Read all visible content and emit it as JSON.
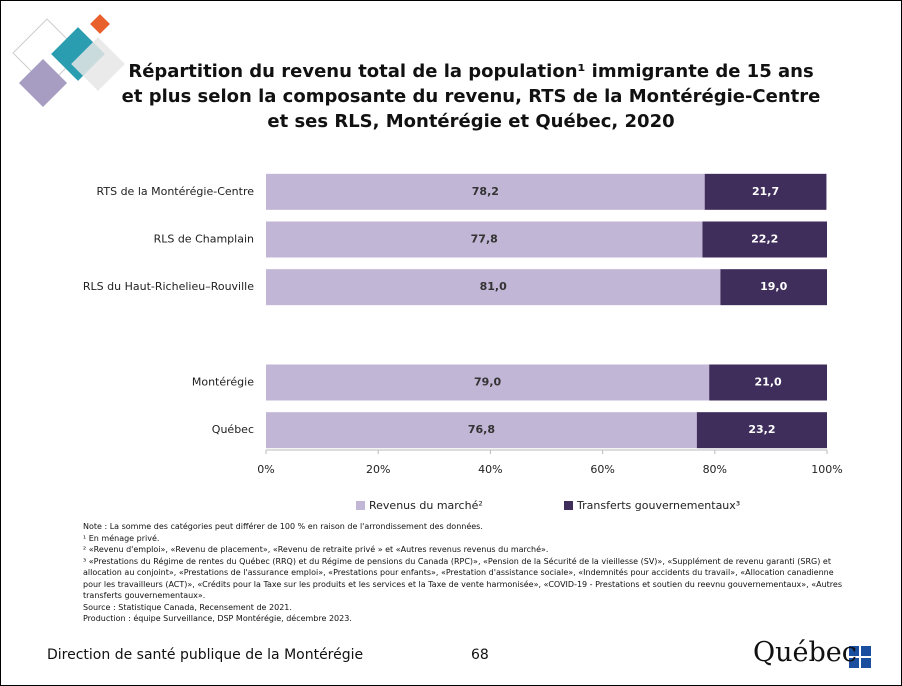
{
  "chart_data": {
    "type": "stacked-barh",
    "title": "Répartition du revenu total de la population¹ immigrante de 15 ans et plus selon la composante du revenu, RTS de la Montérégie-Centre et ses RLS, Montérégie et Québec, 2020",
    "categories": [
      "RTS de la Montérégie-Centre",
      "RLS de Champlain",
      "RLS du Haut-Richelieu–Rouville",
      null,
      "Montérégie",
      "Québec"
    ],
    "series": [
      {
        "name": "Revenus du marché²",
        "color": "#c2b6d6",
        "values": [
          78.2,
          77.8,
          81.0,
          null,
          79.0,
          76.8
        ],
        "value_labels": [
          "78,2",
          "77,8",
          "81,0",
          null,
          "79,0",
          "76,8"
        ]
      },
      {
        "name": "Transferts gouvernementaux³",
        "color": "#3f2e5c",
        "values": [
          21.7,
          22.2,
          19.0,
          null,
          21.0,
          23.2
        ],
        "value_labels": [
          "21,7",
          "22,2",
          "19,0",
          null,
          "21,0",
          "23,2"
        ]
      }
    ],
    "xlim": [
      0,
      100
    ],
    "xticks": [
      {
        "value": 0,
        "label": "0%"
      },
      {
        "value": 20,
        "label": "20%"
      },
      {
        "value": 40,
        "label": "40%"
      },
      {
        "value": 60,
        "label": "60%"
      },
      {
        "value": 80,
        "label": "80%"
      },
      {
        "value": 100,
        "label": "100%"
      }
    ],
    "legend": "bottom"
  },
  "notes": [
    "Note : La somme des catégories peut différer de 100 % en raison de l'arrondissement des données.",
    "¹ En ménage privé.",
    "² «Revenu d'emploi», «Revenu de placement», «Revenu de retraite privé » et «Autres revenus revenus du marché».",
    "³ «Prestations du Régime de rentes du Québec (RRQ) et du Régime de pensions du Canada (RPC)», «Pension de la Sécurité de la vieillesse (SV)», «Supplément de revenu garanti (SRG) et allocation au conjoint», «Prestations de l'assurance emploi», «Prestations pour enfants», «Prestation d'assistance sociale», «Indemnités pour accidents du travail», «Allocation canadienne pour les travailleurs (ACT)», «Crédits pour la Taxe sur les produits et les services et la Taxe de vente harmonisée», «COVID-19 - Prestations et soutien du reevnu gouvernementaux», «Autres transferts gouvernementaux».",
    "Source : Statistique Canada, Recensement de 2021.",
    "Production : équipe Surveillance, DSP Montérégie, décembre 2023."
  ],
  "footer": {
    "organization": "Direction de santé publique de la Montérégie",
    "page": "68",
    "logo": "Québec"
  }
}
